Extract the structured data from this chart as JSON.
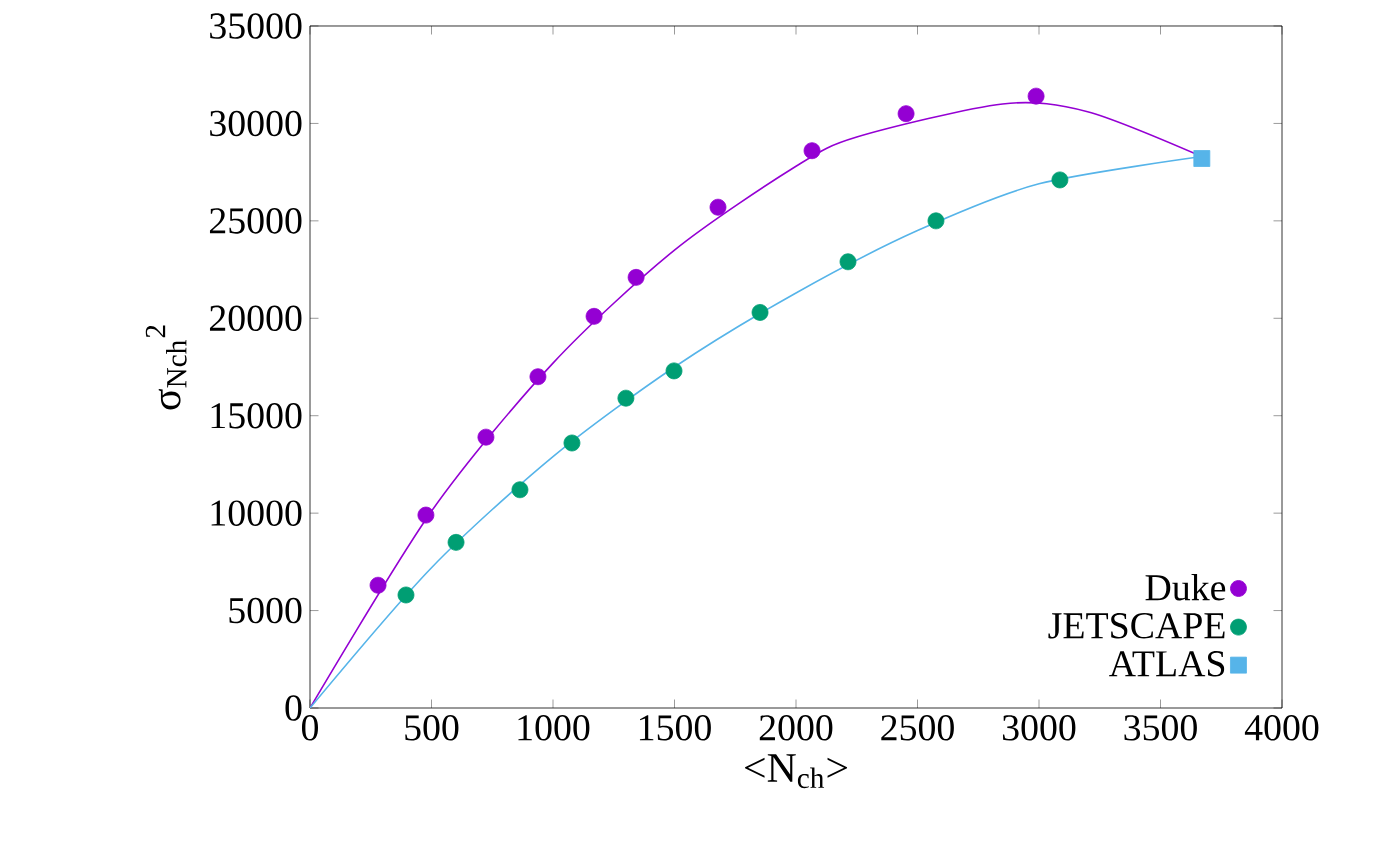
{
  "chart_data": {
    "type": "scatter",
    "xlabel": "<N$_{ch}$>",
    "ylabel": "σ$_{Nch}$$^{2}$",
    "xlim": [
      0,
      4000
    ],
    "xticks": [
      0,
      500,
      1000,
      1500,
      2000,
      2500,
      3000,
      3500,
      4000
    ],
    "ylim": [
      0,
      35000
    ],
    "yticks": [
      0,
      5000,
      10000,
      15000,
      20000,
      25000,
      30000,
      35000
    ],
    "legend": "bottom right",
    "grid": false,
    "series": [
      {
        "type": "line",
        "color": "#9400d3",
        "marker": "none",
        "x": [
          0,
          500,
          1000,
          1500,
          2000,
          2250,
          2850,
          3200,
          3670
        ],
        "values": [
          0,
          10100,
          17700,
          23500,
          27800,
          29300,
          31000,
          30600,
          28300
        ]
      },
      {
        "type": "line",
        "color": "#56b4e9",
        "marker": "none",
        "x": [
          0,
          500,
          1000,
          1500,
          2000,
          2500,
          3000,
          3670
        ],
        "values": [
          0,
          7200,
          12900,
          17500,
          21300,
          24500,
          26900,
          28300
        ]
      },
      {
        "name": "Duke",
        "color": "#9400d3",
        "marker": "circle",
        "x": [
          280,
          477,
          724,
          938,
          1169,
          1342,
          1679,
          2066,
          2453,
          2988
        ],
        "values": [
          6300,
          9900,
          13900,
          17000,
          20100,
          22100,
          25700,
          28600,
          30500,
          31400
        ]
      },
      {
        "name": "JETSCAPE",
        "color": "#009e73",
        "marker": "circle",
        "x": [
          395,
          601,
          864,
          1078,
          1300,
          1498,
          1852,
          2214,
          2576,
          3086
        ],
        "values": [
          5800,
          8500,
          11200,
          13600,
          15900,
          17300,
          20300,
          22900,
          25000,
          27100
        ]
      },
      {
        "name": "ATLAS",
        "color": "#56b4e9",
        "marker": "square",
        "x": [
          3670
        ],
        "values": [
          28200
        ]
      }
    ]
  }
}
